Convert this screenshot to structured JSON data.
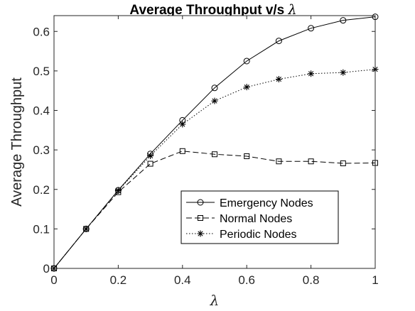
{
  "chart_data": {
    "type": "line",
    "title": "Average Throughput v/s",
    "title_symbol": "λ",
    "xlabel": "λ",
    "ylabel": "Average Throughput",
    "xlim": [
      0,
      1
    ],
    "ylim": [
      0,
      0.64
    ],
    "x_ticks": [
      "0",
      "0.2",
      "0.4",
      "0.6",
      "0.8",
      "1"
    ],
    "y_ticks": [
      "0",
      "0.1",
      "0.2",
      "0.3",
      "0.4",
      "0.5",
      "0.6"
    ],
    "grid": false,
    "legend_position": "bottom-right",
    "x": [
      0,
      0.1,
      0.2,
      0.3,
      0.4,
      0.5,
      0.6,
      0.7,
      0.8,
      0.9,
      1.0
    ],
    "series": [
      {
        "name": "Emergency Nodes",
        "line_style": "solid",
        "marker": "circle",
        "color": "#000000",
        "values": [
          0,
          0.1,
          0.198,
          0.29,
          0.375,
          0.457,
          0.525,
          0.576,
          0.608,
          0.628,
          0.637
        ]
      },
      {
        "name": "Normal Nodes",
        "line_style": "dashed",
        "marker": "square",
        "color": "#000000",
        "values": [
          0,
          0.1,
          0.193,
          0.265,
          0.297,
          0.289,
          0.284,
          0.271,
          0.271,
          0.266,
          0.267
        ]
      },
      {
        "name": "Periodic Nodes",
        "line_style": "dotted",
        "marker": "star",
        "color": "#000000",
        "values": [
          0,
          0.1,
          0.197,
          0.285,
          0.365,
          0.424,
          0.459,
          0.479,
          0.493,
          0.496,
          0.504
        ]
      }
    ]
  }
}
